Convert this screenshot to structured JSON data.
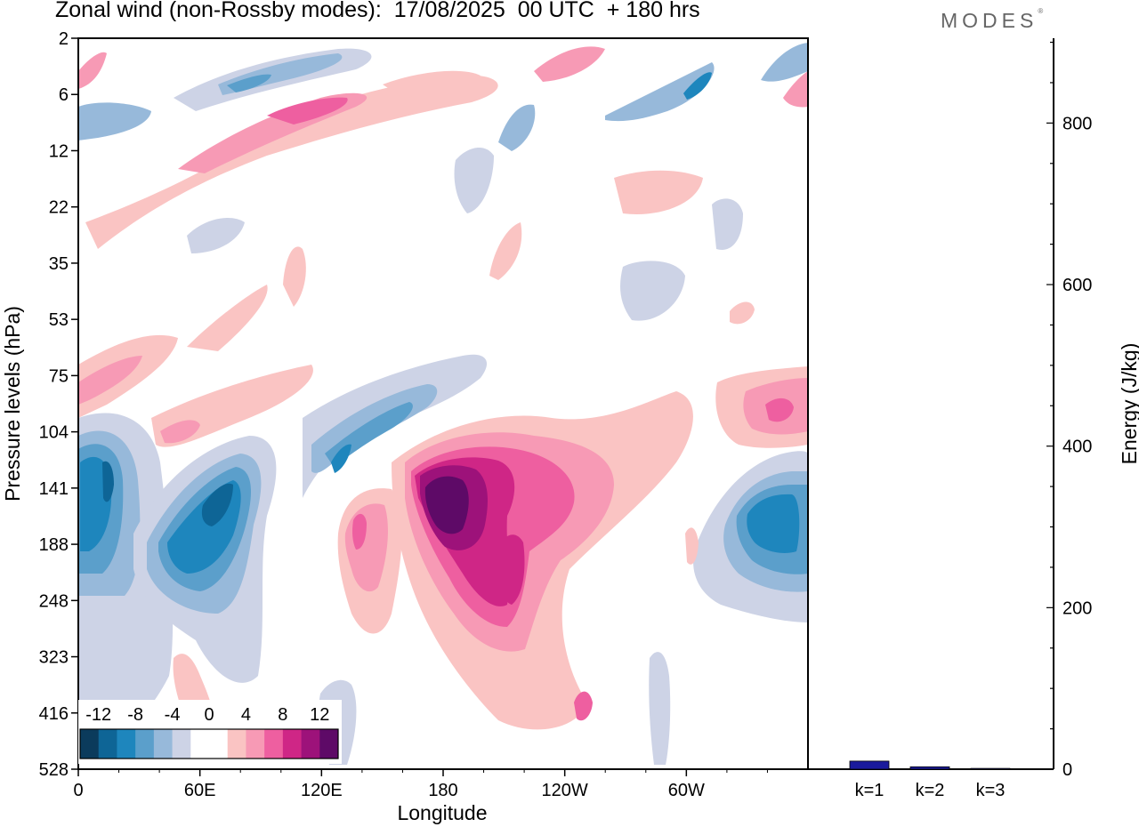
{
  "header": {
    "title": "Zonal wind (non-Rossby modes):  17/08/2025  00 UTC  + 180 hrs",
    "logo": "MODES",
    "logo_mark": "®"
  },
  "chart_data": [
    {
      "type": "heatmap",
      "xlabel": "Longitude",
      "ylabel": "Pressure levels (hPa)",
      "x_ticks": [
        "0",
        "60E",
        "120E",
        "180",
        "120W",
        "60W"
      ],
      "y_levels": [
        "2",
        "6",
        "12",
        "22",
        "35",
        "53",
        "75",
        "104",
        "141",
        "188",
        "248",
        "323",
        "416",
        "528"
      ],
      "colorbar": {
        "labels": [
          "-12",
          "-8",
          "-4",
          "0",
          "4",
          "8",
          "12"
        ],
        "levels": [
          -14,
          -12,
          -10,
          -8,
          -6,
          -4,
          -2,
          0,
          2,
          4,
          6,
          8,
          10,
          12
        ],
        "colors": [
          "#0b3b5c",
          "#0e6596",
          "#1e86bd",
          "#5b9fcb",
          "#97b9da",
          "#cdd3e6",
          "#ffffff",
          "#ffffff",
          "#fac4c3",
          "#f79ab5",
          "#ee5fa0",
          "#cf2686",
          "#9d127a",
          "#5e0a67"
        ]
      },
      "features": [
        {
          "label": "negative anomaly 0-20E",
          "lon": 12,
          "level": "141",
          "value": -12
        },
        {
          "label": "negative anomaly 40-80E",
          "lon": 58,
          "level": "188",
          "value": -12
        },
        {
          "label": "negative anomaly 110-140E",
          "lon": 125,
          "level": "104",
          "value": -8
        },
        {
          "label": "positive anomaly 160E-160W",
          "lon": 180,
          "level": "141",
          "value": 14
        },
        {
          "label": "positive anomaly 150-170W",
          "lon": 200,
          "level": "188",
          "value": 10
        },
        {
          "label": "negative anomaly 20-10W",
          "lon": 340,
          "level": "188",
          "value": -12
        },
        {
          "label": "positive anomaly 20-10W upper",
          "lon": 345,
          "level": "104",
          "value": 8
        },
        {
          "label": "upper positive band 60-120E",
          "lon": 100,
          "level": "6",
          "value": 10
        },
        {
          "label": "upper negative band",
          "lon": 75,
          "level": "6",
          "value": -8
        }
      ]
    },
    {
      "type": "bar",
      "ylabel": "Energy (J/kg)",
      "categories": [
        "k=1",
        "k=2",
        "k=3"
      ],
      "values": [
        10,
        3,
        1
      ],
      "ylim": [
        0,
        905
      ],
      "y_ticks": [
        0,
        200,
        400,
        600,
        800
      ],
      "bar_color": "#1a1a9c"
    }
  ]
}
